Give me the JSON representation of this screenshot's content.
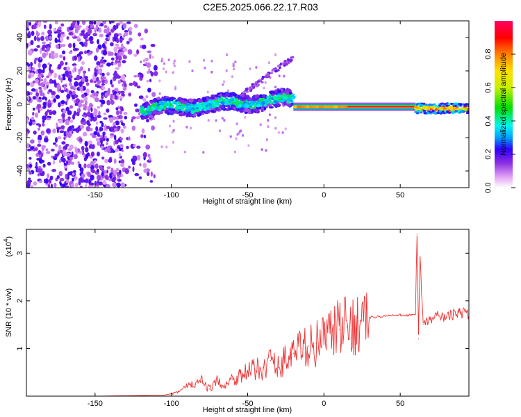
{
  "figure_title": "C2E5.2025.066.22.17.R03",
  "chart_data": [
    {
      "type": "heatmap",
      "xlabel": "Height of straight line (km)",
      "ylabel": "Frequency (Hz)",
      "xlim": [
        -195,
        95
      ],
      "ylim": [
        -50,
        50
      ],
      "x_ticks": [
        -150,
        -100,
        -50,
        0,
        50
      ],
      "y_ticks": [
        -40,
        -20,
        0,
        20,
        40
      ],
      "colorbar": {
        "label": "Normalized spectral amplitude",
        "range": [
          0,
          1
        ],
        "ticks": [
          0.0,
          0.2,
          0.4,
          0.6,
          0.8
        ],
        "colormap": [
          "#ffffff",
          "#e6a8f5",
          "#8a2be2",
          "#3000ff",
          "#00a0ff",
          "#00f5f0",
          "#00e000",
          "#c8f000",
          "#ffe000",
          "#ff8000",
          "#ff0000",
          "#ff0066"
        ]
      },
      "regions": [
        {
          "description": "diffuse low-amplitude noise",
          "x_range": [
            -195,
            -120
          ],
          "y_range": [
            -50,
            50
          ],
          "amplitude": 0.15
        },
        {
          "description": "turbulent band",
          "x_range": [
            -120,
            -20
          ],
          "y_range": [
            -7,
            7
          ],
          "amplitude": 0.35
        },
        {
          "description": "rising branch",
          "x_range": [
            -55,
            -20
          ],
          "y_start": 5,
          "y_end": 28,
          "amplitude": 0.15
        },
        {
          "description": "steady strong line",
          "x_range": [
            -20,
            60
          ],
          "y_center": -1.5,
          "amplitude": 0.95
        },
        {
          "description": "post-step band",
          "x_range": [
            60,
            95
          ],
          "y_center": -2.5,
          "amplitude": 0.6
        }
      ]
    },
    {
      "type": "line",
      "xlabel": "Height of straight line (km)",
      "ylabel": "SNR (10 * v/v)",
      "scale_label": "(x10",
      "scale_exponent": "4",
      "scale_suffix": ")",
      "xlim": [
        -195,
        95
      ],
      "ylim": [
        0,
        3.5
      ],
      "x_ticks": [
        -150,
        -100,
        -50,
        0,
        50
      ],
      "y_ticks": [
        1,
        2,
        3
      ],
      "series_color": "#ee3030",
      "x": [
        -195,
        -150,
        -105,
        -100,
        -95,
        -90,
        -85,
        -80,
        -75,
        -70,
        -65,
        -60,
        -55,
        -50,
        -45,
        -40,
        -35,
        -30,
        -25,
        -20,
        -15,
        -10,
        -5,
        0,
        5,
        10,
        15,
        20,
        25,
        30,
        40,
        50,
        55,
        60,
        61,
        62,
        63,
        65,
        70,
        75,
        80,
        85,
        90,
        95
      ],
      "y": [
        0,
        0,
        0.02,
        0.05,
        0.1,
        0.2,
        0.25,
        0.3,
        0.15,
        0.3,
        0.25,
        0.35,
        0.45,
        0.5,
        0.55,
        0.6,
        0.75,
        0.6,
        0.8,
        0.9,
        1.0,
        1.05,
        1.1,
        1.2,
        1.35,
        1.4,
        1.45,
        1.5,
        1.6,
        1.65,
        1.68,
        1.7,
        1.7,
        1.72,
        3.4,
        1.2,
        2.9,
        1.5,
        1.6,
        1.7,
        1.65,
        1.72,
        1.75,
        1.7
      ]
    }
  ]
}
